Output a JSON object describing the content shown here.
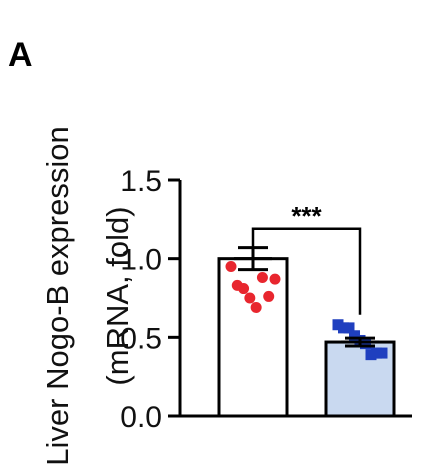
{
  "panel_label": "A",
  "chart_data": {
    "type": "bar",
    "title": "",
    "ylabel_line1": "Liver Nogo-B expression",
    "ylabel_line2": "(mRNA, fold)",
    "xlabel": "",
    "ylim": [
      0,
      1.5
    ],
    "yticks": [
      {
        "value": 0.0,
        "label": "0.0"
      },
      {
        "value": 0.5,
        "label": "0.5"
      },
      {
        "value": 1.0,
        "label": "1.0"
      },
      {
        "value": 1.5,
        "label": "1.5"
      }
    ],
    "categories": [
      "",
      ""
    ],
    "values": [
      1.0,
      0.47
    ],
    "sem": [
      0.07,
      0.025
    ],
    "bar_fill": [
      "#ffffff",
      "#c9d9f0"
    ],
    "bar_stroke": "#000000",
    "point_colors": [
      "#e8262e",
      "#1f3fbf"
    ],
    "point_shapes": [
      "circle",
      "square"
    ],
    "points": [
      [
        0.95,
        0.83,
        0.81,
        0.75,
        0.69,
        0.88,
        0.76,
        0.87
      ],
      [
        0.58,
        0.56,
        0.56,
        0.51,
        0.48,
        0.46,
        0.39,
        0.4,
        0.4
      ]
    ],
    "significance": {
      "label": "***",
      "between": [
        0,
        1
      ],
      "y": 1.19
    }
  }
}
